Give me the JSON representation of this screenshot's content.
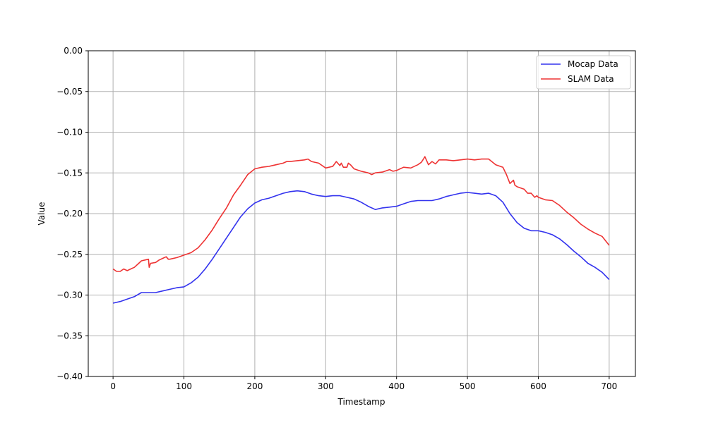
{
  "chart_data": {
    "type": "line",
    "title": "",
    "xlabel": "Timestamp",
    "ylabel": "Value",
    "xlim": [
      -35,
      737
    ],
    "ylim": [
      -0.4,
      0.0
    ],
    "xticks": [
      0,
      100,
      200,
      300,
      400,
      500,
      600,
      700
    ],
    "yticks": [
      0.0,
      -0.05,
      -0.1,
      -0.15,
      -0.2,
      -0.25,
      -0.3,
      -0.35,
      -0.4
    ],
    "ytick_labels": [
      "0.00",
      "−0.05",
      "−0.10",
      "−0.15",
      "−0.20",
      "−0.25",
      "−0.30",
      "−0.35",
      "−0.40"
    ],
    "grid": true,
    "legend_position": "top-right",
    "series": [
      {
        "name": "Mocap Data",
        "color": "#3333ee",
        "x": [
          0,
          10,
          20,
          30,
          40,
          50,
          60,
          70,
          80,
          90,
          100,
          110,
          120,
          130,
          140,
          150,
          160,
          170,
          180,
          190,
          200,
          210,
          220,
          230,
          240,
          250,
          260,
          270,
          280,
          290,
          300,
          310,
          320,
          330,
          340,
          350,
          360,
          370,
          380,
          390,
          400,
          410,
          420,
          430,
          440,
          450,
          460,
          470,
          480,
          490,
          500,
          510,
          520,
          530,
          540,
          550,
          560,
          570,
          580,
          590,
          600,
          610,
          620,
          630,
          640,
          650,
          660,
          670,
          680,
          690,
          700
        ],
        "y": [
          -0.31,
          -0.308,
          -0.305,
          -0.302,
          -0.297,
          -0.297,
          -0.297,
          -0.295,
          -0.293,
          -0.291,
          -0.29,
          -0.285,
          -0.278,
          -0.268,
          -0.256,
          -0.243,
          -0.23,
          -0.217,
          -0.204,
          -0.194,
          -0.187,
          -0.183,
          -0.181,
          -0.178,
          -0.175,
          -0.173,
          -0.172,
          -0.173,
          -0.176,
          -0.178,
          -0.179,
          -0.178,
          -0.178,
          -0.18,
          -0.182,
          -0.186,
          -0.191,
          -0.195,
          -0.193,
          -0.192,
          -0.191,
          -0.188,
          -0.185,
          -0.184,
          -0.184,
          -0.184,
          -0.182,
          -0.179,
          -0.177,
          -0.175,
          -0.174,
          -0.175,
          -0.176,
          -0.175,
          -0.178,
          -0.186,
          -0.2,
          -0.211,
          -0.218,
          -0.221,
          -0.221,
          -0.223,
          -0.226,
          -0.231,
          -0.238,
          -0.246,
          -0.253,
          -0.261,
          -0.266,
          -0.272,
          -0.281
        ]
      },
      {
        "name": "SLAM Data",
        "color": "#ee3333",
        "x": [
          0,
          5,
          10,
          15,
          20,
          25,
          30,
          35,
          40,
          45,
          50,
          51,
          53,
          60,
          65,
          70,
          75,
          78,
          80,
          90,
          100,
          110,
          120,
          130,
          140,
          150,
          160,
          170,
          180,
          190,
          200,
          210,
          220,
          230,
          240,
          245,
          250,
          260,
          270,
          275,
          280,
          290,
          300,
          310,
          315,
          320,
          322,
          325,
          330,
          332,
          335,
          340,
          350,
          360,
          365,
          370,
          380,
          390,
          395,
          400,
          405,
          410,
          420,
          430,
          435,
          438,
          440,
          445,
          450,
          455,
          460,
          470,
          480,
          490,
          500,
          510,
          520,
          530,
          540,
          550,
          555,
          560,
          565,
          567,
          570,
          580,
          585,
          590,
          595,
          598,
          600,
          610,
          620,
          625,
          630,
          640,
          650,
          660,
          670,
          680,
          690,
          700
        ],
        "y": [
          -0.268,
          -0.271,
          -0.271,
          -0.268,
          -0.27,
          -0.268,
          -0.266,
          -0.262,
          -0.258,
          -0.257,
          -0.256,
          -0.266,
          -0.261,
          -0.26,
          -0.257,
          -0.255,
          -0.253,
          -0.256,
          -0.256,
          -0.254,
          -0.251,
          -0.248,
          -0.242,
          -0.232,
          -0.22,
          -0.206,
          -0.193,
          -0.177,
          -0.165,
          -0.152,
          -0.145,
          -0.143,
          -0.142,
          -0.14,
          -0.138,
          -0.136,
          -0.136,
          -0.135,
          -0.134,
          -0.133,
          -0.136,
          -0.138,
          -0.144,
          -0.142,
          -0.136,
          -0.141,
          -0.138,
          -0.143,
          -0.143,
          -0.138,
          -0.14,
          -0.145,
          -0.148,
          -0.15,
          -0.152,
          -0.15,
          -0.149,
          -0.146,
          -0.148,
          -0.147,
          -0.145,
          -0.143,
          -0.144,
          -0.14,
          -0.137,
          -0.133,
          -0.13,
          -0.14,
          -0.136,
          -0.139,
          -0.134,
          -0.134,
          -0.135,
          -0.134,
          -0.133,
          -0.134,
          -0.133,
          -0.133,
          -0.14,
          -0.143,
          -0.152,
          -0.163,
          -0.159,
          -0.165,
          -0.167,
          -0.17,
          -0.175,
          -0.175,
          -0.18,
          -0.178,
          -0.18,
          -0.183,
          -0.184,
          -0.187,
          -0.19,
          -0.198,
          -0.205,
          -0.213,
          -0.219,
          -0.224,
          -0.228,
          -0.239
        ]
      }
    ]
  }
}
